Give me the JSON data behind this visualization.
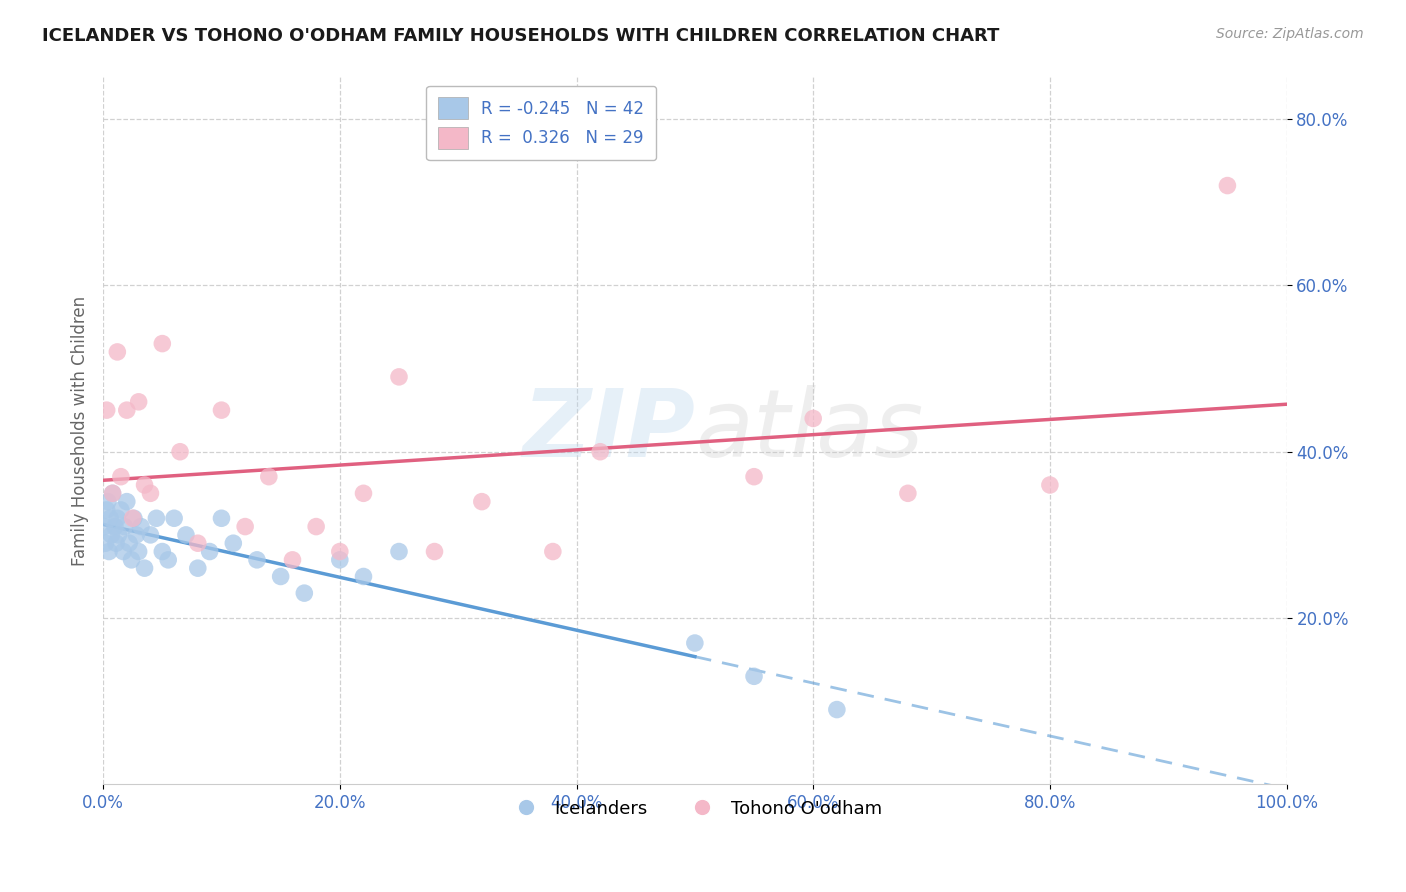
{
  "title": "ICELANDER VS TOHONO O'ODHAM FAMILY HOUSEHOLDS WITH CHILDREN CORRELATION CHART",
  "source": "Source: ZipAtlas.com",
  "ylabel": "Family Households with Children",
  "r_blue": -0.245,
  "n_blue": 42,
  "r_pink": 0.326,
  "n_pink": 29,
  "legend_labels": [
    "Icelanders",
    "Tohono O'odham"
  ],
  "blue_color": "#a8c8e8",
  "pink_color": "#f4b8c8",
  "blue_line_color": "#5b9bd5",
  "pink_line_color": "#e06080",
  "watermark_zip": "ZIP",
  "watermark_atlas": "atlas",
  "blue_scatter_x": [
    0.1,
    0.2,
    0.3,
    0.4,
    0.5,
    0.6,
    0.7,
    0.8,
    1.0,
    1.1,
    1.2,
    1.3,
    1.5,
    1.7,
    1.8,
    2.0,
    2.2,
    2.4,
    2.6,
    2.8,
    3.0,
    3.2,
    3.5,
    4.0,
    4.5,
    5.0,
    5.5,
    6.0,
    7.0,
    8.0,
    9.0,
    10.0,
    11.0,
    13.0,
    15.0,
    17.0,
    20.0,
    22.0,
    25.0,
    50.0,
    55.0,
    62.0
  ],
  "blue_scatter_y": [
    31.0,
    29.0,
    33.0,
    34.0,
    28.0,
    32.0,
    30.0,
    35.0,
    31.0,
    29.0,
    32.0,
    30.0,
    33.0,
    28.0,
    31.0,
    34.0,
    29.0,
    27.0,
    32.0,
    30.0,
    28.0,
    31.0,
    26.0,
    30.0,
    32.0,
    28.0,
    27.0,
    32.0,
    30.0,
    26.0,
    28.0,
    32.0,
    29.0,
    27.0,
    25.0,
    23.0,
    27.0,
    25.0,
    28.0,
    17.0,
    13.0,
    9.0
  ],
  "pink_scatter_x": [
    0.3,
    0.8,
    1.2,
    1.5,
    2.0,
    2.5,
    3.0,
    3.5,
    4.0,
    5.0,
    6.5,
    8.0,
    10.0,
    12.0,
    14.0,
    16.0,
    18.0,
    20.0,
    22.0,
    25.0,
    28.0,
    32.0,
    38.0,
    42.0,
    55.0,
    60.0,
    68.0,
    80.0,
    95.0
  ],
  "pink_scatter_y": [
    45.0,
    35.0,
    52.0,
    37.0,
    45.0,
    32.0,
    46.0,
    36.0,
    35.0,
    53.0,
    40.0,
    29.0,
    45.0,
    31.0,
    37.0,
    27.0,
    31.0,
    28.0,
    35.0,
    49.0,
    28.0,
    34.0,
    28.0,
    40.0,
    37.0,
    44.0,
    35.0,
    36.0,
    72.0
  ],
  "xmin": 0.0,
  "xmax": 100.0,
  "ymin": 0.0,
  "ymax": 85.0,
  "ytick_vals": [
    20,
    40,
    60,
    80
  ],
  "ytick_labels": [
    "20.0%",
    "40.0%",
    "60.0%",
    "80.0%"
  ],
  "xtick_vals": [
    0,
    20,
    40,
    60,
    80,
    100
  ],
  "xtick_labels": [
    "0.0%",
    "20.0%",
    "40.0%",
    "60.0%",
    "80.0%",
    "100.0%"
  ],
  "grid_color": "#cccccc",
  "background_color": "#ffffff",
  "plot_bg": "#ffffff",
  "blue_solid_x_end": 50.0,
  "pink_solid_x_end": 95.0
}
